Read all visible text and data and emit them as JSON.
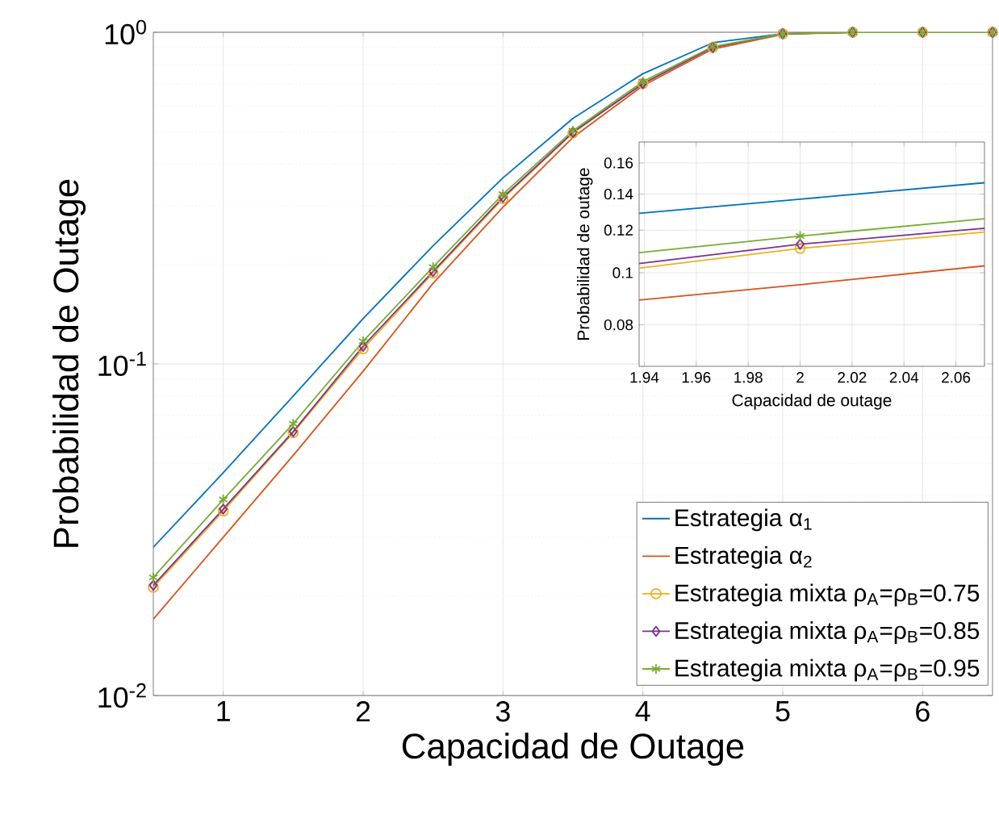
{
  "chart_data": [
    {
      "type": "line",
      "xlabel": "Capacidad de Outage",
      "ylabel": "Probabilidad de Outage",
      "log": "y",
      "grid": true,
      "legend": "bottom right",
      "line_style": "solid",
      "x": [
        0.5,
        1,
        1.5,
        2,
        2.5,
        3,
        3.5,
        4,
        4.5,
        5,
        5.5,
        6,
        6.5
      ],
      "xlim": [
        0.5,
        6.5
      ],
      "ylim": [
        0.01,
        1
      ],
      "xticks": [
        1,
        2,
        3,
        4,
        5,
        6
      ],
      "yticks": [
        {
          "value": 0.01,
          "label": "10$^{-2}$"
        },
        {
          "value": 0.1,
          "label": "10$^{-1}$"
        },
        {
          "value": 1,
          "label": "10$^{0}$"
        }
      ],
      "series": [
        {
          "name": "Estrategia α$_{1}$",
          "color": "#0072bd",
          "marker": "none",
          "values": [
            0.028,
            0.047,
            0.08,
            0.137,
            0.227,
            0.364,
            0.55,
            0.75,
            0.93,
            0.99,
            1,
            null,
            null
          ]
        },
        {
          "name": "Estrategia α$_{2}$",
          "color": "#d95319",
          "marker": "none",
          "values": [
            0.017,
            0.03,
            0.053,
            0.095,
            0.175,
            0.297,
            0.482,
            0.69,
            0.89,
            0.985,
            1,
            null,
            null
          ]
        },
        {
          "name": "Estrategia mixta ρ$_{A}$=ρ$_{B}$=0.75",
          "color": "#edb120",
          "marker": "circle",
          "values": [
            0.0212,
            0.036,
            0.062,
            0.111,
            0.188,
            0.315,
            0.497,
            0.7,
            0.9,
            0.99,
            1,
            1,
            1
          ]
        },
        {
          "name": "Estrategia mixta ρ$_{A}$=ρ$_{B}$=0.85",
          "color": "#7e2f8e",
          "marker": "diamond",
          "values": [
            0.0215,
            0.0365,
            0.0625,
            0.113,
            0.19,
            0.318,
            0.499,
            0.7,
            0.9,
            0.99,
            1,
            1,
            1
          ]
        },
        {
          "name": "Estrategia mixta ρ$_{A}$=ρ$_{B}$=0.95",
          "color": "#77ac30",
          "marker": "cross",
          "values": [
            0.0227,
            0.039,
            0.066,
            0.117,
            0.196,
            0.325,
            0.505,
            0.71,
            0.905,
            0.99,
            1,
            1,
            1
          ]
        }
      ]
    },
    {
      "type": "line",
      "xlabel": "Capacidad de outage",
      "ylabel": "Probabilidad de outage",
      "log": "y",
      "grid": true,
      "line_style": "solid",
      "x": [
        1.938,
        2,
        2.071
      ],
      "xlim": [
        1.938,
        2.071
      ],
      "ylim": [
        0.067,
        0.175
      ],
      "xticks": [
        1.94,
        1.96,
        1.98,
        2,
        2.02,
        2.04,
        2.06
      ],
      "yticks": [
        0.08,
        0.1,
        0.12,
        0.14,
        0.16
      ],
      "series": [
        {
          "color": "#0072bd",
          "marker": "none",
          "values": [
            0.129,
            0.137,
            0.147
          ]
        },
        {
          "color": "#d95319",
          "marker": "none",
          "values": [
            0.089,
            0.095,
            0.103
          ]
        },
        {
          "color": "#edb120",
          "marker": "none",
          "values": [
            0.102,
            0.111,
            0.119
          ]
        },
        {
          "color": "#7e2f8e",
          "marker": "none",
          "values": [
            0.104,
            0.113,
            0.121
          ]
        },
        {
          "color": "#77ac30",
          "marker": "none",
          "values": [
            0.109,
            0.117,
            0.126
          ]
        },
        {
          "type": "scatter",
          "color": "#edb120",
          "marker": "circle",
          "values": [
            null,
            0.111,
            null
          ]
        },
        {
          "type": "scatter",
          "color": "#7e2f8e",
          "marker": "diamond",
          "values": [
            null,
            0.113,
            null
          ]
        },
        {
          "type": "scatter",
          "color": "#77ac30",
          "marker": "cross",
          "values": [
            null,
            0.117,
            null
          ]
        }
      ]
    }
  ]
}
